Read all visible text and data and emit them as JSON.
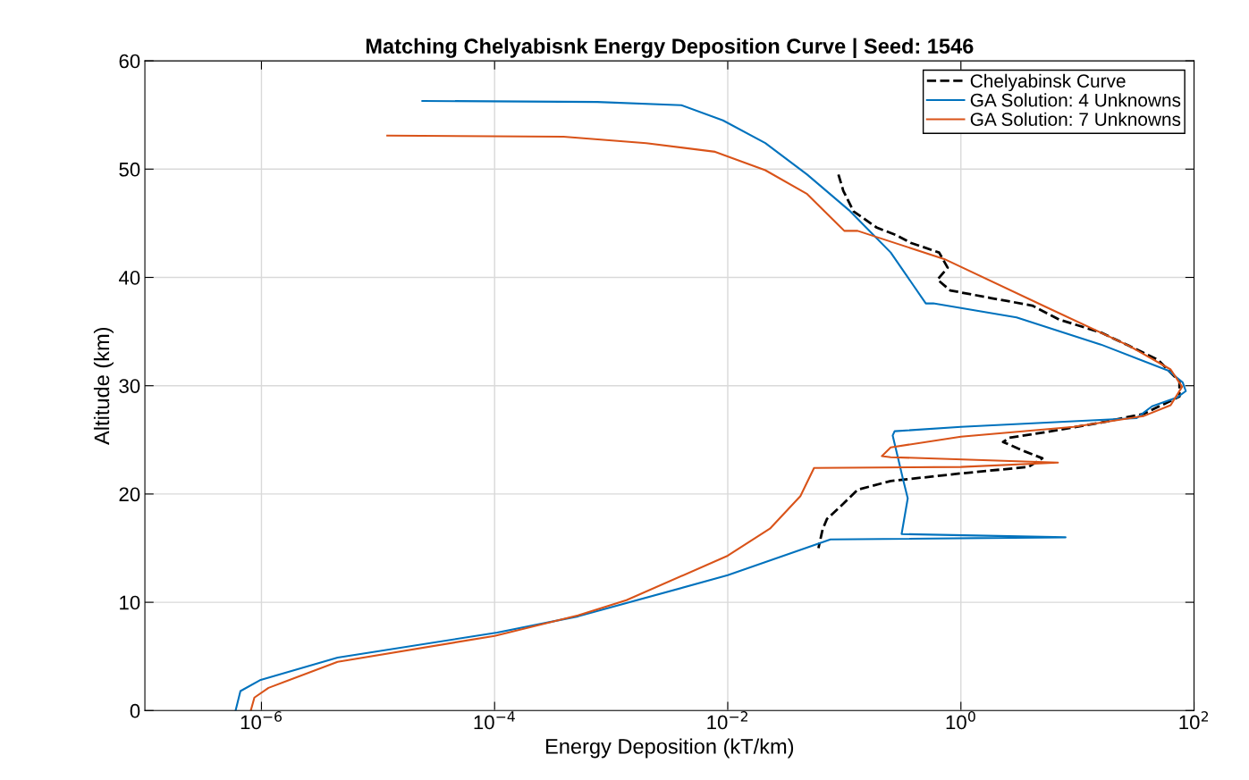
{
  "chart_data": {
    "type": "line",
    "title": "Matching Chelyabisnk Energy Deposition Curve | Seed: 1546",
    "xlabel": "Energy Deposition (kT/km)",
    "ylabel": "Altitude (km)",
    "log": "x",
    "xlim": [
      1e-07,
      100
    ],
    "xticks": [
      {
        "value": 1e-06,
        "label": "10$^{−6}$"
      },
      {
        "value": 0.0001,
        "label": "10$^{−4}$"
      },
      {
        "value": 0.01,
        "label": "10$^{−2}$"
      },
      {
        "value": 1,
        "label": "10$^{0}$"
      },
      {
        "value": 100,
        "label": "10$^{2}$"
      }
    ],
    "ylim": [
      0,
      60
    ],
    "yticks": [
      0,
      10,
      20,
      30,
      40,
      50,
      60
    ],
    "grid": true,
    "legend": "top right",
    "series": [
      {
        "name": "Chelyabinsk Curve",
        "color": "#000000",
        "line_style": "dashed",
        "x": [
          0.089,
          0.098,
          0.12,
          0.19,
          0.28,
          0.37,
          0.65,
          0.77,
          0.63,
          0.81,
          1.8,
          4.1,
          7.0,
          16,
          27.5,
          49,
          75,
          75,
          37,
          16,
          5.3,
          2.6,
          2.3,
          3.6,
          5.0,
          3.8,
          1.0,
          0.25,
          0.13,
          0.098,
          0.071,
          0.065,
          0.06
        ],
        "values": [
          49.5,
          48.0,
          46.1,
          44.6,
          43.9,
          43.2,
          42.3,
          40.9,
          39.8,
          38.8,
          38.1,
          37.4,
          36.1,
          34.9,
          33.7,
          32.4,
          30.4,
          29.0,
          27.4,
          26.6,
          25.7,
          25.2,
          24.8,
          23.9,
          23.3,
          22.5,
          21.9,
          21.2,
          20.4,
          19.1,
          17.7,
          16.7,
          15.0
        ]
      },
      {
        "name": "GA Solution: 4 Unknowns",
        "color": "#0072bd",
        "line_style": "solid",
        "x": [
          2.4e-05,
          0.00076,
          0.004,
          0.0091,
          0.021,
          0.048,
          0.11,
          0.25,
          0.5,
          0.58,
          3.0,
          15.9,
          60,
          80,
          85,
          71,
          43.6,
          32,
          1.0,
          0.27,
          0.26,
          0.32,
          0.35,
          0.31,
          7.9,
          0.076,
          0.01,
          0.00052,
          0.000105,
          4.5e-06,
          9.7e-07,
          6.6e-07,
          6e-07
        ],
        "values": [
          56.3,
          56.2,
          55.9,
          54.5,
          52.4,
          49.5,
          46.2,
          42.3,
          37.6,
          37.6,
          36.3,
          33.8,
          31.4,
          30.3,
          29.5,
          28.9,
          28.1,
          27.0,
          26.2,
          25.8,
          25.4,
          21.3,
          19.6,
          16.3,
          16.0,
          15.8,
          12.5,
          8.7,
          7.2,
          4.9,
          2.8,
          1.8,
          0
        ]
      },
      {
        "name": "GA Solution: 7 Unknowns",
        "color": "#d95319",
        "line_style": "solid",
        "x": [
          1.2e-05,
          0.00039,
          0.002,
          0.0078,
          0.021,
          0.048,
          0.1,
          0.13,
          0.72,
          5.3,
          27.5,
          63,
          79,
          63,
          37,
          9.3,
          1.0,
          0.25,
          0.21,
          0.25,
          6.8,
          1.0,
          0.055,
          0.042,
          0.023,
          0.01,
          0.00135,
          0.00052,
          0.0001,
          4.5e-06,
          1.15e-06,
          8.7e-07,
          8.1e-07
        ],
        "values": [
          53.1,
          53.0,
          52.4,
          51.6,
          49.9,
          47.7,
          44.3,
          44.3,
          41.7,
          37.3,
          33.7,
          31.5,
          29.9,
          28.2,
          27.2,
          26.2,
          25.3,
          24.3,
          23.5,
          23.4,
          22.9,
          22.5,
          22.4,
          19.8,
          16.8,
          14.3,
          10.2,
          8.8,
          6.9,
          4.5,
          2.1,
          1.2,
          0
        ]
      }
    ]
  }
}
